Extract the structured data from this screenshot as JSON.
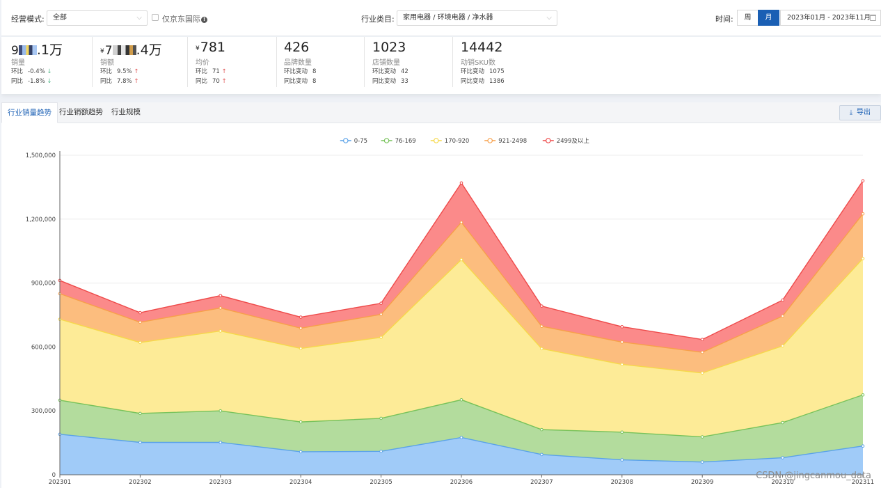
{
  "filters": {
    "mode_label": "经营模式:",
    "mode_value": "全部",
    "jd_intl_label": "仅京东国际",
    "industry_label": "行业类目:",
    "industry_value": "家用电器 / 环境电器 / 净水器",
    "time_label": "时间:",
    "week_label": "周",
    "month_label": "月",
    "date_range": "2023年01月 - 2023年11月"
  },
  "metrics": [
    {
      "value": ".1万",
      "label": "销量",
      "r1k": "环比",
      "r1v": "-0.4%",
      "r1a": "↓",
      "r2k": "同比",
      "r2v": "-1.8%",
      "r2a": "↓"
    },
    {
      "value": ".4万",
      "label": "销额",
      "r1k": "环比",
      "r1v": "9.5%",
      "r1a": "↑",
      "r2k": "同比",
      "r2v": "7.8%",
      "r2a": "↑"
    },
    {
      "value": "781",
      "label": "均价",
      "r1k": "环比",
      "r1v": "71",
      "r1a": "↑",
      "r2k": "同比",
      "r2v": "70",
      "r2a": "↑"
    },
    {
      "value": "426",
      "label": "品牌数量",
      "r1k": "环比变动",
      "r1v": "8",
      "r2k": "同比变动",
      "r2v": "8"
    },
    {
      "value": "1023",
      "label": "店铺数量",
      "r1k": "环比变动",
      "r1v": "42",
      "r2k": "同比变动",
      "r2v": "33"
    },
    {
      "value": "14442",
      "label": "动销SKU数",
      "r1k": "环比变动",
      "r1v": "1075",
      "r2k": "同比变动",
      "r2v": "1386"
    }
  ],
  "currency_symbol": "¥",
  "tabs": [
    "行业销量趋势",
    "行业销额趋势",
    "行业规模"
  ],
  "export_label": "导出",
  "watermark": "CSDN @jingcanmou_data",
  "colors": {
    "accent": "#1a5fb4",
    "series_fill": [
      "#a0cbf8",
      "#b3dc9d",
      "#fdeb97",
      "#fcbd7e",
      "#fb8a8a"
    ],
    "series_line": [
      "#5aa2e8",
      "#77c25a",
      "#f6d84a",
      "#f7a04a",
      "#ee4a4a"
    ]
  },
  "chart_data": {
    "type": "area",
    "stacked": true,
    "categories": [
      "202301",
      "202302",
      "202303",
      "202304",
      "202305",
      "202306",
      "202307",
      "202308",
      "202309",
      "202310",
      "202311"
    ],
    "series": [
      {
        "name": "0-75",
        "values": [
          190000,
          152000,
          152000,
          108000,
          110000,
          175000,
          95000,
          70000,
          60000,
          80000,
          135000
        ]
      },
      {
        "name": "76-169",
        "values": [
          160000,
          136000,
          148000,
          140000,
          155000,
          177000,
          117000,
          130000,
          118000,
          165000,
          240000
        ]
      },
      {
        "name": "170-920",
        "values": [
          380000,
          333000,
          375000,
          345000,
          380000,
          658000,
          380000,
          318000,
          300000,
          360000,
          640000
        ]
      },
      {
        "name": "921-2498",
        "values": [
          120000,
          95000,
          108000,
          95000,
          108000,
          175000,
          105000,
          105000,
          97000,
          140000,
          210000
        ]
      },
      {
        "name": "2499及以上",
        "values": [
          62000,
          45000,
          58000,
          52000,
          52000,
          185000,
          95000,
          72000,
          60000,
          75000,
          155000
        ]
      }
    ],
    "yticks": [
      "0",
      "300,000",
      "600,000",
      "900,000",
      "1,200,000",
      "1,500,000"
    ],
    "ylim": [
      0,
      1500000
    ],
    "legend": "top-center",
    "grid": true
  }
}
